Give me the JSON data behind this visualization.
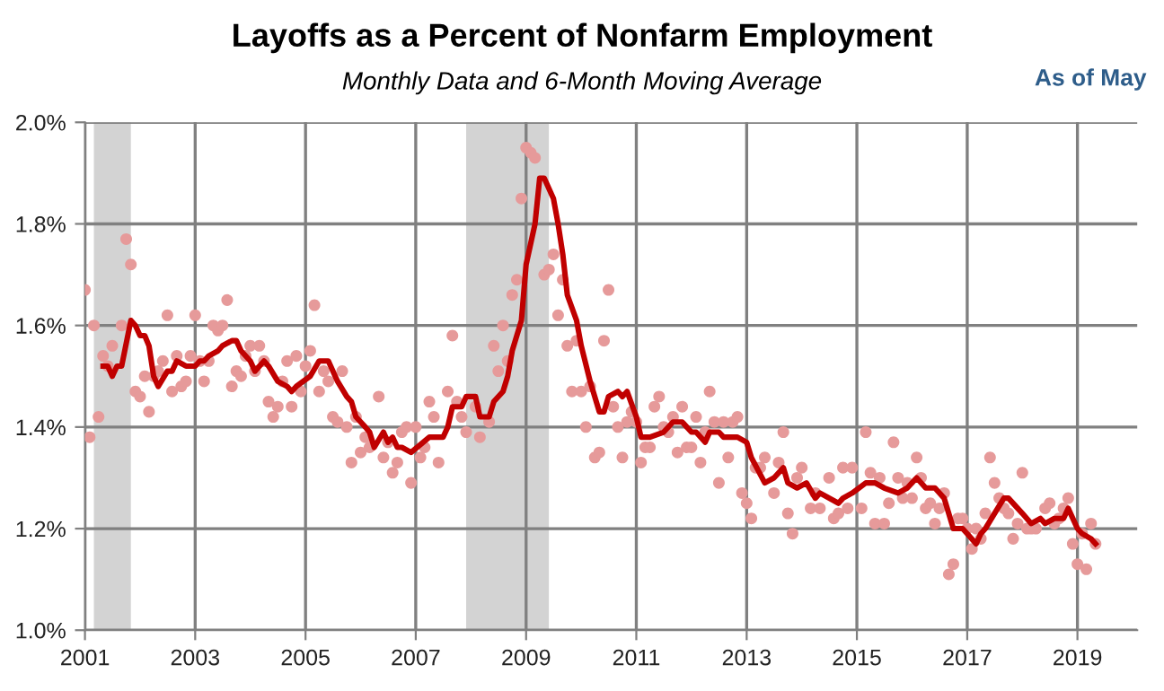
{
  "chart_data": {
    "type": "scatter",
    "title": "Layoffs as a Percent of Nonfarm Employment",
    "subtitle": "Monthly Data and 6-Month Moving Average",
    "annotations": [
      "As of May"
    ],
    "xlim": [
      "2001-01",
      "2020-02"
    ],
    "xticks": [
      {
        "value": "2001-01",
        "label": "2001"
      },
      {
        "value": "2003-01",
        "label": "2003"
      },
      {
        "value": "2005-01",
        "label": "2005"
      },
      {
        "value": "2007-01",
        "label": "2007"
      },
      {
        "value": "2009-01",
        "label": "2009"
      },
      {
        "value": "2011-01",
        "label": "2011"
      },
      {
        "value": "2013-01",
        "label": "2013"
      },
      {
        "value": "2015-01",
        "label": "2015"
      },
      {
        "value": "2017-01",
        "label": "2017"
      },
      {
        "value": "2019-01",
        "label": "2019"
      }
    ],
    "ylim": [
      1.0,
      2.0
    ],
    "yticks": [
      {
        "value": 1.0,
        "label": "1.0%"
      },
      {
        "value": 1.2,
        "label": "1.2%"
      },
      {
        "value": 1.4,
        "label": "1.4%"
      },
      {
        "value": 1.6,
        "label": "1.6%"
      },
      {
        "value": 1.8,
        "label": "1.8%"
      },
      {
        "value": 2.0,
        "label": "2.0%"
      }
    ],
    "grid": true,
    "legend": false,
    "bands": [
      {
        "axis": "x",
        "from": "2001-03",
        "to": "2001-11",
        "color": "#d3d3d3"
      },
      {
        "axis": "x",
        "from": "2007-12",
        "to": "2009-06",
        "color": "#d3d3d3"
      }
    ],
    "series": [
      {
        "color": "#e69a9a",
        "marker": "circle",
        "x": [
          "2001-01",
          "2001-02",
          "2001-03",
          "2001-04",
          "2001-05",
          "2001-06",
          "2001-07",
          "2001-09",
          "2001-10",
          "2001-11",
          "2001-12",
          "2002-01",
          "2002-02",
          "2002-03",
          "2002-04",
          "2002-05",
          "2002-06",
          "2002-07",
          "2002-08",
          "2002-09",
          "2002-10",
          "2002-11",
          "2002-12",
          "2003-01",
          "2003-02",
          "2003-03",
          "2003-04",
          "2003-05",
          "2003-06",
          "2003-07",
          "2003-08",
          "2003-09",
          "2003-10",
          "2003-11",
          "2003-12",
          "2004-01",
          "2004-02",
          "2004-03",
          "2004-04",
          "2004-05",
          "2004-06",
          "2004-07",
          "2004-08",
          "2004-09",
          "2004-10",
          "2004-11",
          "2004-12",
          "2005-01",
          "2005-02",
          "2005-03",
          "2005-04",
          "2005-05",
          "2005-06",
          "2005-07",
          "2005-08",
          "2005-09",
          "2005-10",
          "2005-11",
          "2005-12",
          "2006-01",
          "2006-02",
          "2006-03",
          "2006-05",
          "2006-06",
          "2006-07",
          "2006-08",
          "2006-09",
          "2006-10",
          "2006-11",
          "2006-12",
          "2007-01",
          "2007-02",
          "2007-03",
          "2007-04",
          "2007-05",
          "2007-06",
          "2007-08",
          "2007-09",
          "2007-10",
          "2007-11",
          "2007-12",
          "2008-02",
          "2008-03",
          "2008-05",
          "2008-06",
          "2008-07",
          "2008-08",
          "2008-09",
          "2008-10",
          "2008-11",
          "2008-12",
          "2009-01",
          "2009-02",
          "2009-03",
          "2009-05",
          "2009-06",
          "2009-07",
          "2009-08",
          "2009-09",
          "2009-10",
          "2009-11",
          "2009-12",
          "2010-01",
          "2010-02",
          "2010-03",
          "2010-04",
          "2010-05",
          "2010-06",
          "2010-07",
          "2010-08",
          "2010-09",
          "2010-10",
          "2010-11",
          "2010-12",
          "2011-01",
          "2011-02",
          "2011-03",
          "2011-04",
          "2011-05",
          "2011-06",
          "2011-07",
          "2011-08",
          "2011-09",
          "2011-10",
          "2011-11",
          "2011-12",
          "2012-01",
          "2012-02",
          "2012-03",
          "2012-04",
          "2012-05",
          "2012-06",
          "2012-07",
          "2012-08",
          "2012-09",
          "2012-10",
          "2012-11",
          "2012-12",
          "2013-01",
          "2013-02",
          "2013-03",
          "2013-04",
          "2013-05",
          "2013-07",
          "2013-08",
          "2013-09",
          "2013-10",
          "2013-11",
          "2013-12",
          "2014-01",
          "2014-03",
          "2014-04",
          "2014-05",
          "2014-07",
          "2014-08",
          "2014-09",
          "2014-10",
          "2014-11",
          "2014-12",
          "2015-02",
          "2015-03",
          "2015-04",
          "2015-05",
          "2015-06",
          "2015-07",
          "2015-08",
          "2015-09",
          "2015-10",
          "2015-11",
          "2015-12",
          "2016-01",
          "2016-02",
          "2016-03",
          "2016-04",
          "2016-05",
          "2016-06",
          "2016-07",
          "2016-08",
          "2016-09",
          "2016-10",
          "2016-11",
          "2016-12",
          "2017-01",
          "2017-02",
          "2017-03",
          "2017-04",
          "2017-05",
          "2017-06",
          "2017-07",
          "2017-08",
          "2017-09",
          "2017-10",
          "2017-11",
          "2017-12",
          "2018-01",
          "2018-02",
          "2018-03",
          "2018-04",
          "2018-06",
          "2018-07",
          "2018-08",
          "2018-09",
          "2018-10",
          "2018-11",
          "2018-12",
          "2019-01",
          "2019-02",
          "2019-03",
          "2019-04",
          "2019-05"
        ],
        "values": [
          1.67,
          1.38,
          1.6,
          1.42,
          1.54,
          1.52,
          1.56,
          1.6,
          1.77,
          1.72,
          1.47,
          1.46,
          1.5,
          1.43,
          1.5,
          1.51,
          1.53,
          1.62,
          1.47,
          1.54,
          1.48,
          1.49,
          1.54,
          1.62,
          1.53,
          1.49,
          1.53,
          1.6,
          1.59,
          1.6,
          1.65,
          1.48,
          1.51,
          1.5,
          1.54,
          1.56,
          1.51,
          1.56,
          1.53,
          1.45,
          1.42,
          1.44,
          1.49,
          1.53,
          1.44,
          1.54,
          1.47,
          1.52,
          1.55,
          1.64,
          1.47,
          1.51,
          1.49,
          1.42,
          1.41,
          1.51,
          1.4,
          1.33,
          1.42,
          1.35,
          1.38,
          1.36,
          1.46,
          1.34,
          1.37,
          1.31,
          1.33,
          1.39,
          1.4,
          1.29,
          1.4,
          1.34,
          1.36,
          1.45,
          1.42,
          1.33,
          1.47,
          1.58,
          1.45,
          1.42,
          1.39,
          1.44,
          1.38,
          1.41,
          1.56,
          1.51,
          1.6,
          1.53,
          1.66,
          1.69,
          1.85,
          1.95,
          1.94,
          1.93,
          1.7,
          1.71,
          1.74,
          1.62,
          1.69,
          1.56,
          1.47,
          1.57,
          1.47,
          1.4,
          1.48,
          1.34,
          1.35,
          1.57,
          1.67,
          1.44,
          1.4,
          1.34,
          1.41,
          1.43,
          1.41,
          1.33,
          1.36,
          1.36,
          1.44,
          1.46,
          1.4,
          1.39,
          1.42,
          1.35,
          1.44,
          1.36,
          1.36,
          1.42,
          1.33,
          1.39,
          1.47,
          1.41,
          1.29,
          1.41,
          1.34,
          1.41,
          1.42,
          1.27,
          1.25,
          1.22,
          1.32,
          1.32,
          1.34,
          1.27,
          1.33,
          1.39,
          1.23,
          1.19,
          1.3,
          1.32,
          1.24,
          1.27,
          1.24,
          1.3,
          1.22,
          1.23,
          1.32,
          1.24,
          1.32,
          1.24,
          1.39,
          1.31,
          1.21,
          1.3,
          1.21,
          1.25,
          1.37,
          1.3,
          1.26,
          1.29,
          1.26,
          1.34,
          1.3,
          1.24,
          1.25,
          1.21,
          1.24,
          1.27,
          1.11,
          1.13,
          1.22,
          1.22,
          1.2,
          1.16,
          1.2,
          1.18,
          1.23,
          1.34,
          1.29,
          1.26,
          1.24,
          1.23,
          1.18,
          1.21,
          1.31,
          1.2,
          1.2,
          1.2,
          1.24,
          1.25,
          1.21,
          1.22,
          1.24,
          1.26,
          1.17,
          1.13,
          1.19,
          1.12,
          1.21,
          1.17
        ]
      },
      {
        "type": "line",
        "color": "#c00000",
        "line_style": "solid",
        "x": [
          "2001-05",
          "2001-06",
          "2001-07",
          "2001-08",
          "2001-09",
          "2001-11",
          "2001-12",
          "2002-01",
          "2002-02",
          "2002-03",
          "2002-04",
          "2002-05",
          "2002-07",
          "2002-08",
          "2002-09",
          "2002-11",
          "2003-01",
          "2003-02",
          "2003-03",
          "2003-04",
          "2003-06",
          "2003-07",
          "2003-09",
          "2003-10",
          "2003-11",
          "2004-01",
          "2004-02",
          "2004-04",
          "2004-05",
          "2004-07",
          "2004-09",
          "2004-10",
          "2004-11",
          "2005-02",
          "2005-04",
          "2005-06",
          "2005-08",
          "2005-10",
          "2005-11",
          "2005-12",
          "2006-02",
          "2006-03",
          "2006-04",
          "2006-06",
          "2006-07",
          "2006-08",
          "2006-09",
          "2006-10",
          "2006-12",
          "2007-04",
          "2007-07",
          "2007-08",
          "2007-09",
          "2007-11",
          "2007-12",
          "2008-02",
          "2008-03",
          "2008-05",
          "2008-06",
          "2008-08",
          "2008-09",
          "2008-10",
          "2008-12",
          "2009-01",
          "2009-03",
          "2009-04",
          "2009-05",
          "2009-07",
          "2009-08",
          "2009-09",
          "2009-10",
          "2009-12",
          "2010-01",
          "2010-03",
          "2010-05",
          "2010-06",
          "2010-07",
          "2010-09",
          "2010-10",
          "2010-11",
          "2011-01",
          "2011-02",
          "2011-04",
          "2011-07",
          "2011-09",
          "2011-11",
          "2012-01",
          "2012-02",
          "2012-04",
          "2012-05",
          "2012-07",
          "2012-08",
          "2012-10",
          "2012-11",
          "2013-01",
          "2013-02",
          "2013-05",
          "2013-07",
          "2013-09",
          "2013-10",
          "2013-12",
          "2014-02",
          "2014-04",
          "2014-05",
          "2014-09",
          "2014-10",
          "2014-12",
          "2015-03",
          "2015-05",
          "2015-07",
          "2015-10",
          "2015-12",
          "2016-02",
          "2016-04",
          "2016-06",
          "2016-08",
          "2016-10",
          "2016-12",
          "2017-01",
          "2017-03",
          "2017-04",
          "2017-05",
          "2017-07",
          "2017-09",
          "2017-10",
          "2017-12",
          "2018-01",
          "2018-03",
          "2018-05",
          "2018-06",
          "2018-08",
          "2018-10",
          "2018-11",
          "2019-01",
          "2019-02",
          "2019-04",
          "2019-05"
        ],
        "values": [
          1.52,
          1.52,
          1.5,
          1.52,
          1.52,
          1.61,
          1.6,
          1.58,
          1.58,
          1.56,
          1.5,
          1.48,
          1.51,
          1.51,
          1.53,
          1.52,
          1.52,
          1.53,
          1.53,
          1.54,
          1.55,
          1.56,
          1.57,
          1.57,
          1.55,
          1.53,
          1.51,
          1.53,
          1.52,
          1.49,
          1.48,
          1.47,
          1.48,
          1.5,
          1.53,
          1.53,
          1.49,
          1.46,
          1.45,
          1.42,
          1.4,
          1.39,
          1.36,
          1.39,
          1.37,
          1.38,
          1.36,
          1.36,
          1.35,
          1.38,
          1.38,
          1.4,
          1.44,
          1.44,
          1.46,
          1.46,
          1.42,
          1.42,
          1.45,
          1.47,
          1.5,
          1.55,
          1.61,
          1.72,
          1.8,
          1.89,
          1.89,
          1.85,
          1.8,
          1.74,
          1.66,
          1.61,
          1.56,
          1.49,
          1.43,
          1.43,
          1.46,
          1.47,
          1.46,
          1.47,
          1.42,
          1.38,
          1.38,
          1.39,
          1.41,
          1.41,
          1.39,
          1.39,
          1.37,
          1.39,
          1.39,
          1.38,
          1.38,
          1.38,
          1.37,
          1.34,
          1.29,
          1.3,
          1.32,
          1.29,
          1.28,
          1.29,
          1.26,
          1.27,
          1.25,
          1.26,
          1.27,
          1.29,
          1.29,
          1.28,
          1.27,
          1.28,
          1.3,
          1.28,
          1.28,
          1.26,
          1.2,
          1.2,
          1.19,
          1.17,
          1.19,
          1.2,
          1.23,
          1.26,
          1.26,
          1.24,
          1.23,
          1.21,
          1.22,
          1.21,
          1.22,
          1.22,
          1.24,
          1.2,
          1.19,
          1.18,
          1.17
        ]
      }
    ]
  }
}
